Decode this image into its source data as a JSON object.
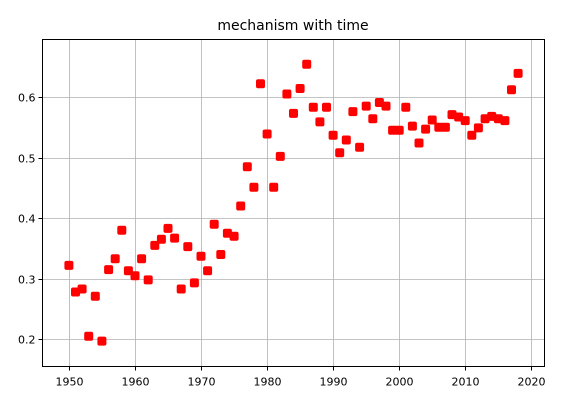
{
  "chart_data": {
    "type": "scatter",
    "title": "mechanism with time",
    "xlabel": "",
    "ylabel": "",
    "xlim": [
      1946,
      2022
    ],
    "ylim": [
      0.155,
      0.695
    ],
    "grid": true,
    "marker_color": "#ff0000",
    "marker_shape": "square",
    "xticks": [
      1950,
      1960,
      1970,
      1980,
      1990,
      2000,
      2010,
      2020
    ],
    "yticks": [
      0.2,
      0.3,
      0.4,
      0.5,
      0.6
    ],
    "ytick_labels": [
      "0.2",
      "0.3",
      "0.4",
      "0.5",
      "0.6"
    ],
    "series": [
      {
        "x": [
          1950,
          1951,
          1952,
          1953,
          1954,
          1955,
          1956,
          1957,
          1958,
          1959,
          1960,
          1961,
          1962,
          1963,
          1964,
          1965,
          1966,
          1967,
          1968,
          1969,
          1970,
          1971,
          1972,
          1973,
          1974,
          1975,
          1976,
          1977,
          1978,
          1979,
          1980,
          1981,
          1982,
          1983,
          1984,
          1985,
          1986,
          1987,
          1988,
          1989,
          1990,
          1991,
          1992,
          1993,
          1994,
          1995,
          1996,
          1997,
          1998,
          1999,
          2000,
          2001,
          2002,
          2003,
          2004,
          2005,
          2006,
          2007,
          2008,
          2009,
          2010,
          2011,
          2012,
          2013,
          2014,
          2015,
          2016,
          2017,
          2018
        ],
        "y": [
          0.322,
          0.278,
          0.283,
          0.205,
          0.271,
          0.197,
          0.315,
          0.333,
          0.38,
          0.313,
          0.305,
          0.333,
          0.298,
          0.355,
          0.365,
          0.383,
          0.367,
          0.283,
          0.353,
          0.293,
          0.337,
          0.313,
          0.39,
          0.34,
          0.375,
          0.37,
          0.42,
          0.485,
          0.451,
          0.622,
          0.539,
          0.451,
          0.502,
          0.605,
          0.573,
          0.614,
          0.654,
          0.583,
          0.559,
          0.583,
          0.537,
          0.508,
          0.529,
          0.576,
          0.517,
          0.585,
          0.564,
          0.591,
          0.585,
          0.545,
          0.545,
          0.583,
          0.552,
          0.524,
          0.547,
          0.562,
          0.55,
          0.55,
          0.571,
          0.567,
          0.561,
          0.537,
          0.549,
          0.564,
          0.568,
          0.564,
          0.561,
          0.612,
          0.639
        ]
      }
    ]
  }
}
